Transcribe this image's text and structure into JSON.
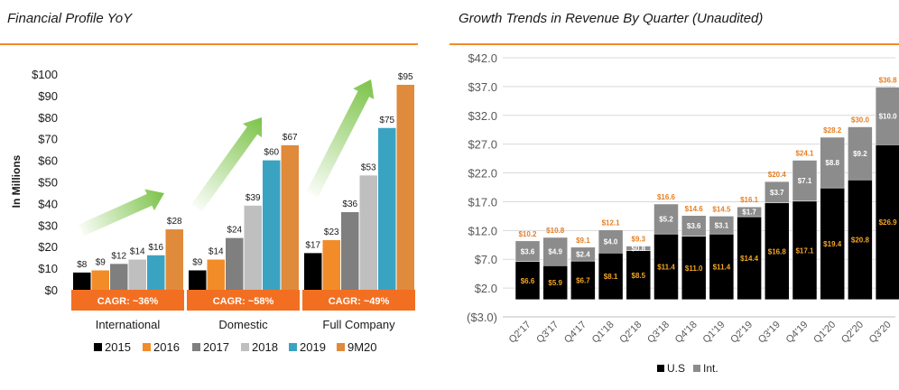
{
  "left_chart": {
    "title": "Financial Profile YoY",
    "ylabel": "In Millions",
    "y_ticks": [
      "$100",
      "$90",
      "$80",
      "$70",
      "$60",
      "$50",
      "$40",
      "$30",
      "$20",
      "$10",
      "$0"
    ]
  },
  "right_chart": {
    "title": "Growth Trends in Revenue By Quarter (Unaudited)",
    "y_ticks": [
      "$42.0",
      "$37.0",
      "$32.0",
      "$27.0",
      "$22.0",
      "$17.0",
      "$12.0",
      "$7.0",
      "$2.0",
      "($3.0)"
    ]
  },
  "colors": {
    "2015": "#000000",
    "2016": "#f28c28",
    "2017": "#7f7f7f",
    "2018": "#bfbfbf",
    "2019": "#3ba3c2",
    "9M20": "#e08a3c",
    "us": "#000000",
    "int": "#8c8c8c",
    "cagr_bg": "#f26f21",
    "total_label": "#e67e22",
    "us_label": "#f5a623",
    "int_label": "#ffffff",
    "arrow": "#7cc349"
  },
  "chart_data": [
    {
      "type": "bar",
      "title": "Financial Profile YoY",
      "ylabel": "In Millions",
      "ylim": [
        0,
        100
      ],
      "categories": [
        "International",
        "Domestic",
        "Full Company"
      ],
      "series": [
        {
          "name": "2015",
          "values": [
            8,
            9,
            17
          ]
        },
        {
          "name": "2016",
          "values": [
            9,
            14,
            23
          ]
        },
        {
          "name": "2017",
          "values": [
            12,
            24,
            36
          ]
        },
        {
          "name": "2018",
          "values": [
            14,
            39,
            53
          ]
        },
        {
          "name": "2019",
          "values": [
            16,
            60,
            75
          ]
        },
        {
          "name": "9M20",
          "values": [
            28,
            67,
            95
          ]
        }
      ],
      "value_labels": [
        [
          "$8",
          "$9",
          "$12",
          "$14",
          "$16",
          "$28"
        ],
        [
          "$9",
          "$14",
          "$24",
          "$39",
          "$60",
          "$67"
        ],
        [
          "$17",
          "$23",
          "$36",
          "$53",
          "$75",
          "$95"
        ]
      ],
      "cagr_labels": [
        "CAGR: ~36%",
        "CAGR: ~58%",
        "CAGR: ~49%"
      ],
      "legend": [
        "2015",
        "2016",
        "2017",
        "2018",
        "2019",
        "9M20"
      ]
    },
    {
      "type": "bar",
      "stacked": true,
      "title": "Growth Trends in Revenue By Quarter (Unaudited)",
      "ylim": [
        -3,
        42
      ],
      "categories": [
        "Q2'17",
        "Q3'17",
        "Q4'17",
        "Q1'18",
        "Q2'18",
        "Q3'18",
        "Q4'18",
        "Q1'19",
        "Q2'19",
        "Q3'19",
        "Q4'19",
        "Q1'20",
        "Q2'20",
        "Q3'20"
      ],
      "series": [
        {
          "name": "U.S",
          "values": [
            6.6,
            5.9,
            6.7,
            8.1,
            8.5,
            11.4,
            11.0,
            11.4,
            14.4,
            16.8,
            17.1,
            19.4,
            20.8,
            26.9
          ]
        },
        {
          "name": "Int.",
          "values": [
            3.6,
            4.9,
            2.4,
            4.0,
            0.8,
            5.2,
            3.6,
            3.1,
            1.7,
            3.7,
            7.1,
            8.8,
            9.2,
            10.0
          ]
        }
      ],
      "us_labels": [
        "$6.6",
        "$5.9",
        "$6.7",
        "$8.1",
        "$8.5",
        "$11.4",
        "$11.0",
        "$11.4",
        "$14.4",
        "$16.8",
        "$17.1",
        "$19.4",
        "$20.8",
        "$26.9"
      ],
      "int_labels": [
        "$3.6",
        "$4.9",
        "$2.4",
        "$4.0",
        "$0.8",
        "$5.2",
        "$3.6",
        "$3.1",
        "$1.7",
        "$3.7",
        "$7.1",
        "$8.8",
        "$9.2",
        "$10.0"
      ],
      "totals": [
        "$10.2",
        "$10.8",
        "$9.1",
        "$12.1",
        "$9.3",
        "$16.6",
        "$14.6",
        "$14.5",
        "$16.1",
        "$20.4",
        "$24.1",
        "$28.2",
        "$30.0",
        "$36.8"
      ],
      "legend": [
        "U.S",
        "Int."
      ]
    }
  ]
}
